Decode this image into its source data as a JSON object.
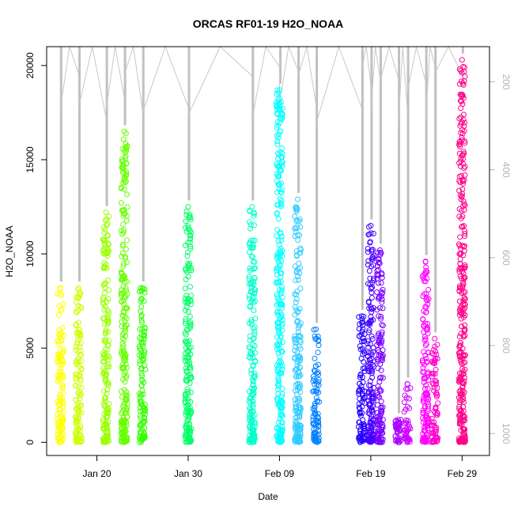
{
  "chart_data": {
    "type": "scatter",
    "title": "ORCAS RF01-19 H2O_NOAA",
    "xlabel": "Date",
    "ylabel": "H2O_NOAA",
    "x_ticks": [
      {
        "date": "2016-01-20",
        "label": "Jan 20"
      },
      {
        "date": "2016-01-30",
        "label": "Jan 30"
      },
      {
        "date": "2016-02-09",
        "label": "Feb 09"
      },
      {
        "date": "2016-02-19",
        "label": "Feb 19"
      },
      {
        "date": "2016-02-29",
        "label": "Feb 29"
      }
    ],
    "xlim": [
      "2016-01-14T12:00",
      "2016-03-03T00:00"
    ],
    "ylim": [
      -700,
      21000
    ],
    "y_ticks": [
      0,
      5000,
      10000,
      15000,
      20000
    ],
    "y2_ticks": [
      200,
      400,
      600,
      800,
      1000
    ],
    "y2lim": [
      1050,
      120
    ],
    "y2_reversed": true,
    "y2_color": "#b3b3b3",
    "marker": "open-circle",
    "series": [
      {
        "date": "2016-01-16",
        "color": "#ffff00",
        "max": 8200
      },
      {
        "date": "2016-01-18",
        "color": "#ccff00",
        "max": 8200
      },
      {
        "date": "2016-01-21",
        "color": "#99ff00",
        "max": 12200
      },
      {
        "date": "2016-01-23",
        "color": "#66ff00",
        "max": 16500
      },
      {
        "date": "2016-01-25",
        "color": "#33ff00",
        "max": 8200
      },
      {
        "date": "2016-01-30",
        "color": "#00ff66",
        "max": 12500
      },
      {
        "date": "2016-02-06",
        "color": "#00ffcc",
        "max": 12500
      },
      {
        "date": "2016-02-09",
        "color": "#00ffff",
        "max": 18700
      },
      {
        "date": "2016-02-11",
        "color": "#33ccff",
        "max": 12900
      },
      {
        "date": "2016-02-13",
        "color": "#0080ff",
        "max": 6000
      },
      {
        "date": "2016-02-18",
        "color": "#2200ff",
        "max": 6700
      },
      {
        "date": "2016-02-19",
        "color": "#4400ff",
        "max": 11500
      },
      {
        "date": "2016-02-20",
        "color": "#7700ff",
        "max": 10200
      },
      {
        "date": "2016-02-22",
        "color": "#aa00ff",
        "max": 1200
      },
      {
        "date": "2016-02-23",
        "color": "#cc00ff",
        "max": 3100
      },
      {
        "date": "2016-02-25",
        "color": "#ff00ff",
        "max": 9600
      },
      {
        "date": "2016-02-26",
        "color": "#ff00cc",
        "max": 5500
      },
      {
        "date": "2016-02-29",
        "color": "#ff0088",
        "max": 20300
      }
    ]
  }
}
